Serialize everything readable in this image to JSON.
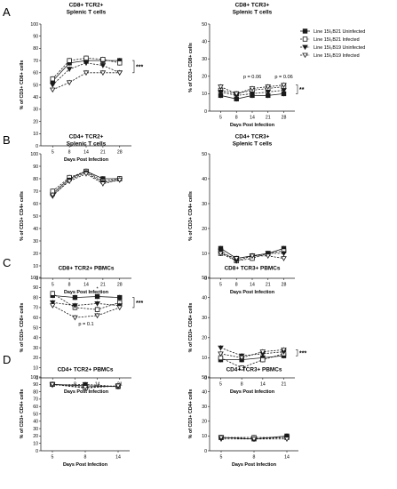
{
  "legend": [
    {
      "label": "Line 15I₅B21 Uninfected",
      "marker": "square",
      "filled": true,
      "dash": false
    },
    {
      "label": "Line 15I₅B21 Infected",
      "marker": "square",
      "filled": false,
      "dash": true
    },
    {
      "label": "Line 15I₅B19 Uninfected",
      "marker": "triangle-down",
      "filled": true,
      "dash": true
    },
    {
      "label": "Line 15I₅B19 Infected",
      "marker": "triangle-down",
      "filled": false,
      "dash": true
    }
  ],
  "colors": {
    "lines": "#1a1a1a"
  },
  "chart_data": [
    {
      "panel": "A",
      "type": "line",
      "title": [
        "CD8+ TCR2+",
        "Splenic T cells"
      ],
      "xlabel": "Days Post Infection",
      "ylabel": "% of CD3+ CD8+ cells",
      "x": [
        5,
        8,
        14,
        21,
        28
      ],
      "xticks": [
        "5",
        "8",
        "14",
        "21",
        "28"
      ],
      "ylim": [
        0,
        100
      ],
      "yticks": [
        0,
        10,
        20,
        30,
        40,
        50,
        60,
        70,
        80,
        90,
        100
      ],
      "series": [
        {
          "values": [
            53,
            68,
            70,
            70,
            70
          ]
        },
        {
          "values": [
            55,
            70,
            72,
            71,
            68
          ]
        },
        {
          "values": [
            50,
            63,
            68,
            66,
            60
          ]
        },
        {
          "values": [
            46,
            52,
            60,
            60,
            60
          ]
        }
      ],
      "annotations": [
        {
          "text": "***",
          "at": "right"
        }
      ]
    },
    {
      "panel": "",
      "type": "line",
      "title": [
        "CD8+ TCR3+",
        "Splenic T cells"
      ],
      "xlabel": "Days Post Infection",
      "ylabel": "% of CD3+ CD8+ cells",
      "x": [
        5,
        8,
        14,
        21,
        28
      ],
      "xticks": [
        "5",
        "8",
        "14",
        "21",
        "28"
      ],
      "ylim": [
        0,
        50
      ],
      "yticks": [
        0,
        10,
        20,
        30,
        40,
        50
      ],
      "series": [
        {
          "values": [
            9,
            7,
            9,
            9,
            10
          ]
        },
        {
          "values": [
            12,
            10,
            12,
            13,
            14
          ]
        },
        {
          "values": [
            11,
            9,
            10,
            11,
            12
          ]
        },
        {
          "values": [
            14,
            10,
            13,
            14,
            15
          ]
        }
      ],
      "annotations": [
        {
          "text": "**",
          "at": "right"
        },
        {
          "text": "p = 0.06",
          "x": 14,
          "y": 19
        },
        {
          "text": "p = 0.06",
          "x": 28,
          "y": 19
        }
      ]
    },
    {
      "panel": "B",
      "type": "line",
      "title": [
        "CD4+ TCR2+",
        "Splenic T cells"
      ],
      "xlabel": "Days Post Infection",
      "ylabel": "% of CD3+ CD4+ cells",
      "x": [
        5,
        8,
        14,
        21,
        28
      ],
      "xticks": [
        "5",
        "8",
        "14",
        "21",
        "28"
      ],
      "ylim": [
        0,
        100
      ],
      "yticks": [
        0,
        10,
        20,
        30,
        40,
        50,
        60,
        70,
        80,
        90,
        100
      ],
      "series": [
        {
          "values": [
            68,
            80,
            86,
            80,
            80
          ]
        },
        {
          "values": [
            70,
            81,
            86,
            78,
            80
          ]
        },
        {
          "values": [
            66,
            79,
            85,
            77,
            79
          ]
        },
        {
          "values": [
            67,
            78,
            84,
            76,
            79
          ]
        }
      ],
      "annotations": []
    },
    {
      "panel": "",
      "type": "line",
      "title": [
        "CD4+ TCR3+",
        "Splenic T cells"
      ],
      "xlabel": "Days Post Infection",
      "ylabel": "% of CD3+ CD4+ cells",
      "x": [
        5,
        8,
        14,
        21,
        28
      ],
      "xticks": [
        "5",
        "8",
        "14",
        "21",
        "28"
      ],
      "ylim": [
        0,
        50
      ],
      "yticks": [
        0,
        10,
        20,
        30,
        40,
        50
      ],
      "series": [
        {
          "values": [
            12,
            8,
            9,
            10,
            12
          ]
        },
        {
          "values": [
            10,
            7,
            8,
            10,
            11
          ]
        },
        {
          "values": [
            11,
            7,
            9,
            10,
            10
          ]
        },
        {
          "values": [
            10,
            8,
            9,
            9,
            8
          ]
        }
      ],
      "annotations": []
    },
    {
      "panel": "C",
      "type": "line",
      "title": [
        "CD8+ TCR2+ PBMCs"
      ],
      "xlabel": "Days Post Infection",
      "ylabel": "% of CD3+ CD8+ cells",
      "x": [
        5,
        8,
        14,
        21
      ],
      "xticks": [
        "5",
        "8",
        "14",
        "21"
      ],
      "ylim": [
        0,
        100
      ],
      "yticks": [
        0,
        10,
        20,
        30,
        40,
        50,
        60,
        70,
        80,
        90,
        100
      ],
      "series": [
        {
          "values": [
            82,
            80,
            81,
            80
          ]
        },
        {
          "values": [
            84,
            70,
            68,
            75
          ]
        },
        {
          "values": [
            75,
            72,
            74,
            72
          ]
        },
        {
          "values": [
            72,
            60,
            62,
            70
          ]
        }
      ],
      "annotations": [
        {
          "text": "***",
          "at": "right"
        },
        {
          "text": "*",
          "x": 14,
          "y": 87
        },
        {
          "text": "p = 0.1",
          "x": 11,
          "y": 52
        }
      ]
    },
    {
      "panel": "",
      "type": "line",
      "title": [
        "CD8+ TCR3+ PBMCs"
      ],
      "xlabel": "Days Post Infection",
      "ylabel": "% of CD3+ CD8+ cells",
      "x": [
        5,
        8,
        14,
        21
      ],
      "xticks": [
        "5",
        "8",
        "14",
        "21"
      ],
      "ylim": [
        0,
        50
      ],
      "yticks": [
        0,
        10,
        20,
        30,
        40,
        50
      ],
      "series": [
        {
          "values": [
            9,
            9,
            10,
            11
          ]
        },
        {
          "values": [
            10,
            5,
            9,
            12
          ]
        },
        {
          "values": [
            15,
            11,
            12,
            13
          ]
        },
        {
          "values": [
            12,
            10,
            13,
            14
          ]
        }
      ],
      "annotations": [
        {
          "text": "***",
          "at": "right"
        }
      ]
    },
    {
      "panel": "D",
      "type": "line",
      "title": [
        "CD4+ TCR2+ PBMCs"
      ],
      "xlabel": "Days Post Infection",
      "ylabel": "% of CD3+ CD4+ cells",
      "x": [
        5,
        8,
        14
      ],
      "xticks": [
        "5",
        "8",
        "14"
      ],
      "ylim": [
        0,
        100
      ],
      "yticks": [
        0,
        10,
        20,
        30,
        40,
        50,
        60,
        70,
        80,
        90,
        100
      ],
      "series": [
        {
          "values": [
            90,
            88,
            87
          ]
        },
        {
          "values": [
            90,
            85,
            88
          ]
        },
        {
          "values": [
            89,
            90,
            87
          ]
        },
        {
          "values": [
            90,
            86,
            88
          ]
        }
      ],
      "annotations": []
    },
    {
      "panel": "",
      "type": "line",
      "title": [
        "CD4+ TCR3+ PBMCs"
      ],
      "xlabel": "Days Post Infection",
      "ylabel": "% of CD3+ CD4+ cells",
      "x": [
        5,
        8,
        14
      ],
      "xticks": [
        "5",
        "8",
        "14"
      ],
      "ylim": [
        0,
        50
      ],
      "yticks": [
        0,
        10,
        20,
        30,
        40,
        50
      ],
      "series": [
        {
          "values": [
            9,
            8,
            10
          ]
        },
        {
          "values": [
            9,
            9,
            9
          ]
        },
        {
          "values": [
            8,
            8,
            9
          ]
        },
        {
          "values": [
            9,
            8,
            8
          ]
        }
      ],
      "annotations": []
    }
  ]
}
